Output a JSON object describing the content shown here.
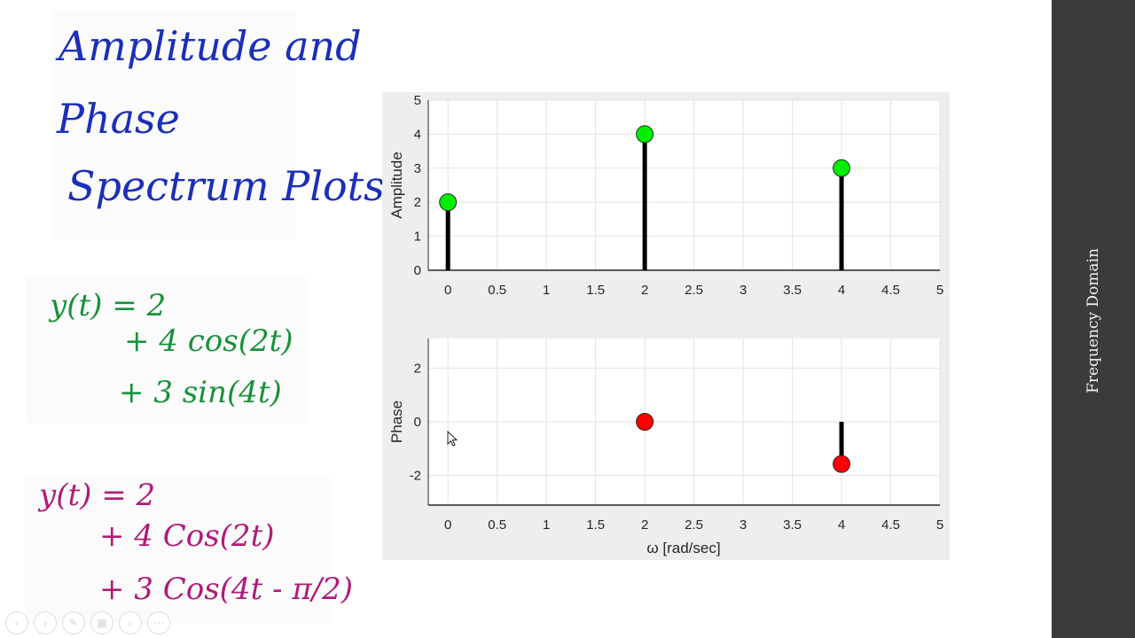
{
  "notes": {
    "title_lines": [
      "Amplitude and",
      "Phase",
      "Spectrum Plots"
    ],
    "equation_green": [
      "y(t) = 2",
      "+ 4 cos(2t)",
      "+ 3 sin(4t)"
    ],
    "equation_pink": [
      "y(t) = 2",
      "+ 4 Cos(2t)",
      "+ 3 Cos(4t - π/2)"
    ]
  },
  "sidebar": {
    "title": "Frequency Domain"
  },
  "controls": [
    {
      "name": "prev-icon",
      "glyph": "‹"
    },
    {
      "name": "next-icon",
      "glyph": "›"
    },
    {
      "name": "pen-icon",
      "glyph": "✎"
    },
    {
      "name": "slides-icon",
      "glyph": "▦"
    },
    {
      "name": "zoom-icon",
      "glyph": "⌕"
    },
    {
      "name": "more-icon",
      "glyph": "⋯"
    }
  ],
  "chart_data": [
    {
      "type": "stem",
      "xlabel": "",
      "ylabel": "Amplitude",
      "xlim": [
        -0.2,
        5
      ],
      "ylim": [
        0,
        5
      ],
      "xticks": [
        "0",
        "0.5",
        "1",
        "1.5",
        "2",
        "2.5",
        "3",
        "3.5",
        "4",
        "4.5",
        "5"
      ],
      "yticks": [
        "0",
        "1",
        "2",
        "3",
        "4",
        "5"
      ],
      "grid": true,
      "marker_color": "#00ee00",
      "points": [
        {
          "x": 0,
          "y": 2
        },
        {
          "x": 2,
          "y": 4
        },
        {
          "x": 4,
          "y": 3
        }
      ]
    },
    {
      "type": "stem",
      "xlabel": "ω [rad/sec]",
      "ylabel": "Phase",
      "xlim": [
        -0.2,
        5
      ],
      "ylim": [
        -3.1,
        3.1
      ],
      "xticks": [
        "0",
        "0.5",
        "1",
        "1.5",
        "2",
        "2.5",
        "3",
        "3.5",
        "4",
        "4.5",
        "5"
      ],
      "yticks": [
        "-2",
        "0",
        "2"
      ],
      "grid": true,
      "marker_color": "#ff0000",
      "points": [
        {
          "x": 2,
          "y": 0
        },
        {
          "x": 4,
          "y": -1.5708
        }
      ]
    }
  ]
}
